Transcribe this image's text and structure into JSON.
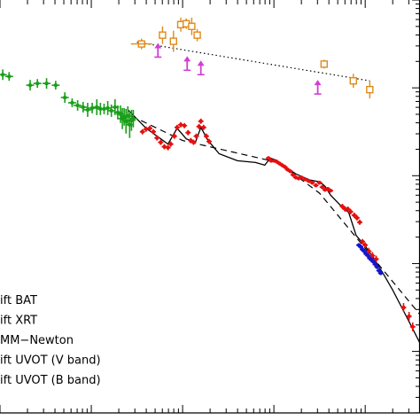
{
  "chart_data": {
    "type": "scatter",
    "title": "",
    "xlabel": "",
    "ylabel": "",
    "x_scale": "log",
    "y_scale": "log",
    "xlim_log10": [
      0.0,
      4.6
    ],
    "ylim_log10": [
      -4.7,
      0.0
    ],
    "grid": false,
    "legend_placement": "bottom-left",
    "legend": [
      {
        "label": "ift BAT",
        "color": "#1a9e1a",
        "marker": "cross"
      },
      {
        "label": "ift XRT",
        "color": "#e60f0f",
        "marker": "cross"
      },
      {
        "label": "MM−Newton",
        "color": "#1515d0",
        "marker": "cross"
      },
      {
        "label": "ift UVOT (V band)",
        "color": "#e08a1a",
        "marker": "square"
      },
      {
        "label": "ift UVOT (B band)",
        "color": "#d13fd1",
        "marker": "arrow-up"
      }
    ],
    "series": [
      {
        "name": "ift BAT",
        "color": "#1a9e1a",
        "marker": "cross",
        "x": [
          0.03,
          0.1,
          0.33,
          0.41,
          0.51,
          0.61,
          0.71,
          0.79,
          0.85,
          0.91,
          0.96,
          1.01,
          1.06,
          1.1,
          1.14,
          1.18,
          1.22,
          1.26,
          1.29,
          1.32,
          1.34,
          1.36,
          1.38,
          1.4,
          1.42,
          1.44,
          1.46
        ],
        "y": [
          -0.85,
          -0.87,
          -0.97,
          -0.95,
          -0.95,
          -0.97,
          -1.11,
          -1.17,
          -1.2,
          -1.22,
          -1.25,
          -1.23,
          -1.22,
          -1.24,
          -1.24,
          -1.23,
          -1.26,
          -1.22,
          -1.28,
          -1.3,
          -1.35,
          -1.33,
          -1.38,
          -1.32,
          -1.42,
          -1.37,
          -1.35
        ],
        "y_err": [
          0.06,
          0.05,
          0.06,
          0.05,
          0.06,
          0.05,
          0.06,
          0.05,
          0.06,
          0.06,
          0.08,
          0.06,
          0.09,
          0.07,
          0.06,
          0.08,
          0.07,
          0.09,
          0.08,
          0.1,
          0.12,
          0.1,
          0.14,
          0.11,
          0.15,
          0.12,
          0.1
        ]
      },
      {
        "name": "ift XRT",
        "color": "#e60f0f",
        "marker": "cross",
        "x": [
          1.56,
          1.6,
          1.64,
          1.68,
          1.72,
          1.76,
          1.8,
          1.84,
          1.87,
          1.91,
          1.94,
          1.98,
          2.02,
          2.06,
          2.09,
          2.12,
          2.15,
          2.18,
          2.2,
          2.23,
          2.26,
          2.29,
          2.94,
          2.97,
          3.0,
          3.03,
          3.06,
          3.09,
          3.12,
          3.15,
          3.18,
          3.21,
          3.24,
          3.27,
          3.3,
          3.34,
          3.38,
          3.42,
          3.46,
          3.5,
          3.53,
          3.56,
          3.59,
          3.62,
          3.75,
          3.78,
          3.81,
          3.84,
          3.88,
          3.91,
          3.94,
          3.97,
          4.0,
          4.04,
          4.08,
          4.12,
          4.42,
          4.48,
          4.52
        ],
        "y": [
          -1.5,
          -1.47,
          -1.46,
          -1.5,
          -1.57,
          -1.62,
          -1.67,
          -1.68,
          -1.64,
          -1.55,
          -1.45,
          -1.42,
          -1.43,
          -1.51,
          -1.6,
          -1.62,
          -1.55,
          -1.44,
          -1.38,
          -1.45,
          -1.55,
          -1.61,
          -1.8,
          -1.83,
          -1.83,
          -1.84,
          -1.86,
          -1.88,
          -1.9,
          -1.93,
          -1.95,
          -1.99,
          -2.02,
          -2.03,
          -2.02,
          -2.04,
          -2.06,
          -2.08,
          -2.11,
          -2.08,
          -2.13,
          -2.16,
          -2.15,
          -2.17,
          -2.35,
          -2.38,
          -2.38,
          -2.41,
          -2.45,
          -2.48,
          -2.53,
          -2.75,
          -2.79,
          -2.86,
          -2.91,
          -2.95,
          -3.5,
          -3.6,
          -3.72
        ],
        "y_err": [
          0.03,
          0.03,
          0.03,
          0.03,
          0.03,
          0.03,
          0.03,
          0.03,
          0.03,
          0.03,
          0.03,
          0.03,
          0.03,
          0.03,
          0.03,
          0.03,
          0.03,
          0.03,
          0.03,
          0.03,
          0.03,
          0.03,
          0.02,
          0.02,
          0.02,
          0.02,
          0.02,
          0.02,
          0.02,
          0.02,
          0.02,
          0.02,
          0.02,
          0.02,
          0.02,
          0.02,
          0.02,
          0.02,
          0.02,
          0.02,
          0.02,
          0.02,
          0.02,
          0.02,
          0.03,
          0.03,
          0.03,
          0.03,
          0.03,
          0.03,
          0.03,
          0.03,
          0.03,
          0.04,
          0.04,
          0.04,
          0.05,
          0.05,
          0.05
        ]
      },
      {
        "name": "MM−Newton",
        "color": "#1515d0",
        "marker": "cross",
        "x": [
          3.93,
          3.95,
          3.97,
          3.99,
          4.01,
          4.03,
          4.05,
          4.07,
          4.09,
          4.11,
          4.13,
          4.15,
          4.17
        ],
        "y": [
          -2.79,
          -2.81,
          -2.84,
          -2.86,
          -2.89,
          -2.91,
          -2.94,
          -2.96,
          -2.98,
          -3.01,
          -3.04,
          -3.08,
          -3.11
        ],
        "y_err": [
          0.02,
          0.02,
          0.02,
          0.02,
          0.02,
          0.02,
          0.02,
          0.02,
          0.02,
          0.02,
          0.02,
          0.02,
          0.02
        ]
      },
      {
        "name": "ift UVOT (V band)",
        "color": "#e08a1a",
        "marker": "square",
        "x": [
          1.55,
          1.78,
          1.9,
          1.98,
          2.04,
          2.1,
          2.16,
          3.55,
          3.87,
          4.05
        ],
        "y": [
          -0.5,
          -0.4,
          -0.47,
          -0.28,
          -0.27,
          -0.3,
          -0.4,
          -0.73,
          -0.92,
          -1.02
        ],
        "y_err": [
          0.06,
          0.1,
          0.12,
          0.08,
          0.06,
          0.1,
          0.07,
          0.05,
          0.08,
          0.1
        ]
      },
      {
        "name": "ift UVOT (B band)",
        "color": "#d13fd1",
        "marker": "arrow-up",
        "x": [
          1.73,
          2.05,
          2.2,
          3.48
        ],
        "y": [
          -0.65,
          -0.8,
          -0.85,
          -1.07
        ]
      }
    ],
    "model_curve": {
      "x": [
        1.4,
        1.6,
        1.76,
        1.84,
        1.94,
        2.04,
        2.14,
        2.2,
        2.28,
        2.4,
        2.6,
        2.8,
        2.9,
        2.96,
        3.02,
        3.1,
        3.24,
        3.4,
        3.5,
        3.56,
        3.62,
        3.74,
        3.82,
        3.9,
        4.0,
        4.1,
        4.2,
        4.3,
        4.4,
        4.5,
        4.62
      ],
      "y": [
        -1.25,
        -1.46,
        -1.58,
        -1.64,
        -1.46,
        -1.58,
        -1.62,
        -1.45,
        -1.6,
        -1.75,
        -1.83,
        -1.85,
        -1.88,
        -1.8,
        -1.82,
        -1.88,
        -1.98,
        -2.05,
        -2.07,
        -2.12,
        -2.22,
        -2.35,
        -2.42,
        -2.68,
        -2.8,
        -2.95,
        -3.12,
        -3.3,
        -3.5,
        -3.7,
        -3.95
      ]
    },
    "broken_power_law_fit": {
      "x": [
        1.44,
        2.0,
        3.05,
        3.5,
        4.6
      ],
      "y": [
        -1.32,
        -1.6,
        -1.85,
        -2.2,
        -3.58
      ]
    },
    "uvot_trend_line": {
      "x": [
        1.5,
        4.05
      ],
      "y": [
        -0.48,
        -0.92
      ]
    }
  }
}
